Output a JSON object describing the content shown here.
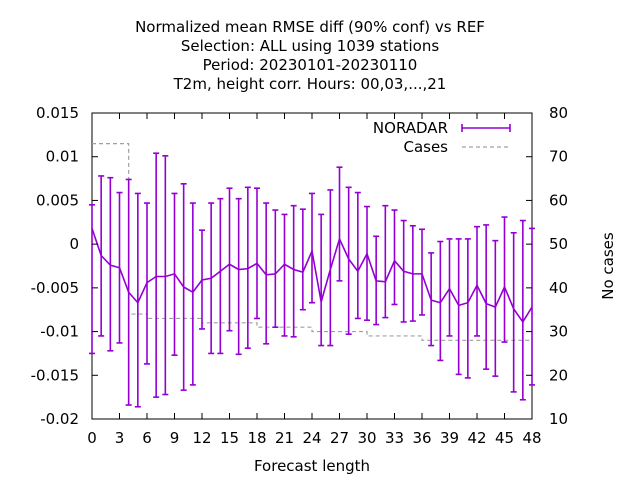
{
  "chart_data": {
    "type": "line",
    "title_lines": [
      "Normalized mean RMSE diff (90% conf) vs REF",
      "Selection: ALL using  1039 stations",
      "Period: 20230101-20230110",
      "T2m, height corr.    Hours:  00,03,...,21"
    ],
    "xlabel": "Forecast length",
    "ylabel": "",
    "y2label": "No cases",
    "xlim": [
      0,
      48
    ],
    "ylim": [
      -0.02,
      0.015
    ],
    "y2lim": [
      10,
      80
    ],
    "x_ticks": [
      0,
      3,
      6,
      9,
      12,
      15,
      18,
      21,
      24,
      27,
      30,
      33,
      36,
      39,
      42,
      45,
      48
    ],
    "y_ticks": [
      -0.02,
      -0.015,
      -0.01,
      -0.005,
      0,
      0.005,
      0.01,
      0.015
    ],
    "y_tick_labels": [
      "-0.02",
      "-0.015",
      "-0.01",
      "-0.005",
      "0",
      "0.005",
      "0.01",
      "0.015"
    ],
    "y2_ticks": [
      10,
      20,
      30,
      40,
      50,
      60,
      70,
      80
    ],
    "grid": false,
    "legend_position": "top-right",
    "series": [
      {
        "name": "NORADAR",
        "color": "#9400d3",
        "axis": "left",
        "x": [
          0,
          1,
          2,
          3,
          4,
          5,
          6,
          7,
          8,
          9,
          10,
          11,
          12,
          13,
          14,
          15,
          16,
          17,
          18,
          19,
          20,
          21,
          22,
          23,
          24,
          25,
          26,
          27,
          28,
          29,
          30,
          31,
          32,
          33,
          34,
          35,
          36,
          37,
          38,
          39,
          40,
          41,
          42,
          43,
          44,
          45,
          46,
          47,
          48
        ],
        "y": [
          0.0018,
          -0.0013,
          -0.0024,
          -0.0027,
          -0.0055,
          -0.0067,
          -0.0044,
          -0.0037,
          -0.0037,
          -0.0034,
          -0.0049,
          -0.0055,
          -0.0041,
          -0.0039,
          -0.0031,
          -0.0023,
          -0.0029,
          -0.0028,
          -0.0022,
          -0.0035,
          -0.0034,
          -0.0023,
          -0.0029,
          -0.0032,
          -0.0008,
          -0.0066,
          -0.0029,
          0.0006,
          -0.0017,
          -0.0031,
          -0.0011,
          -0.0042,
          -0.0043,
          -0.0019,
          -0.0031,
          -0.0034,
          -0.0034,
          -0.0064,
          -0.0067,
          -0.0051,
          -0.007,
          -0.0067,
          -0.0047,
          -0.0068,
          -0.0072,
          -0.0049,
          -0.0074,
          -0.0089,
          -0.0072
        ],
        "err_low": [
          -0.0125,
          -0.0105,
          -0.0122,
          -0.0113,
          -0.0184,
          -0.0186,
          -0.0137,
          -0.0175,
          -0.0172,
          -0.0127,
          -0.0167,
          -0.0161,
          -0.0097,
          -0.0125,
          -0.0125,
          -0.0099,
          -0.0126,
          -0.0119,
          -0.0085,
          -0.0114,
          -0.0095,
          -0.0105,
          -0.0106,
          -0.0075,
          -0.0067,
          -0.0116,
          -0.0116,
          -0.0042,
          -0.0103,
          -0.0085,
          -0.0087,
          -0.0092,
          -0.0084,
          -0.0069,
          -0.0089,
          -0.0088,
          -0.0081,
          -0.0116,
          -0.0133,
          -0.0105,
          -0.0149,
          -0.0153,
          -0.0105,
          -0.0143,
          -0.0151,
          -0.0112,
          -0.0169,
          -0.0178,
          -0.0161
        ],
        "err_high": [
          0.0045,
          0.0078,
          0.0076,
          0.0059,
          0.0074,
          0.0058,
          0.0047,
          0.0104,
          0.0101,
          0.0058,
          0.0069,
          0.0047,
          0.0016,
          0.0047,
          0.0052,
          0.0064,
          0.0052,
          0.0065,
          0.0064,
          0.0047,
          0.0039,
          0.0034,
          0.0044,
          0.004,
          0.0058,
          0.0034,
          0.0062,
          0.0088,
          0.0065,
          0.0059,
          0.0043,
          0.0009,
          0.0044,
          0.0039,
          0.0027,
          0.0021,
          0.0017,
          -0.001,
          0.0003,
          0.0006,
          0.0006,
          0.0006,
          0.002,
          0.0022,
          0.0004,
          0.0031,
          0.0013,
          0.0027,
          0.0018
        ]
      },
      {
        "name": "Cases",
        "color": "#a0a0a0",
        "axis": "right",
        "x": [
          0,
          1,
          2,
          3,
          4,
          5,
          6,
          7,
          8,
          9,
          10,
          11,
          12,
          13,
          14,
          15,
          16,
          17,
          18,
          19,
          20,
          21,
          22,
          23,
          24,
          25,
          26,
          27,
          28,
          29,
          30,
          31,
          32,
          33,
          34,
          35,
          36,
          37,
          38,
          39,
          40,
          41,
          42,
          43,
          44,
          45,
          46,
          47,
          48
        ],
        "y": [
          73,
          73,
          73,
          73,
          34,
          34,
          33,
          33,
          33,
          33,
          33,
          33,
          32,
          32,
          32,
          32,
          32,
          32,
          31,
          31,
          31,
          31,
          31,
          31,
          30,
          30,
          30,
          30,
          30,
          30,
          29,
          29,
          29,
          29,
          29,
          29,
          28,
          28,
          28,
          28,
          28,
          28,
          28,
          28,
          28,
          28,
          28,
          28,
          28
        ]
      }
    ]
  }
}
